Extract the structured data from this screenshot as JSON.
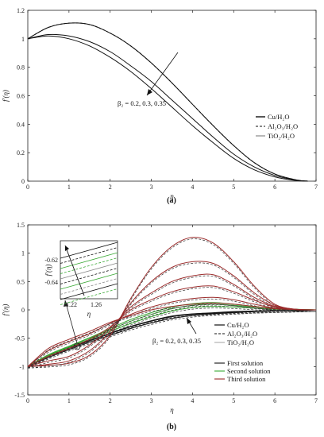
{
  "chart_data": [
    {
      "panel_label": "(a)",
      "type": "line",
      "xlabel": "η",
      "ylabel": "f'(η)",
      "xlim": [
        0,
        7
      ],
      "ylim": [
        0,
        1.2
      ],
      "xticks": [
        "0",
        "1",
        "2",
        "3",
        "4",
        "5",
        "6",
        "7"
      ],
      "yticks": [
        "0",
        "0.2",
        "0.4",
        "0.6",
        "0.8",
        "1",
        "1.2"
      ],
      "annotation": "β₂ = 0.2, 0.3, 0.35",
      "legend": [
        "Cu/H₂O",
        "Al₂O₃/H₂O",
        "TiO₂/H₂O"
      ],
      "x": [
        0,
        0.5,
        1,
        1.5,
        2,
        2.5,
        3,
        3.5,
        4,
        4.5,
        5,
        5.5,
        6,
        6.5,
        6.8
      ],
      "series": [
        {
          "values": [
            1.0,
            1.08,
            1.11,
            1.1,
            1.04,
            0.95,
            0.83,
            0.69,
            0.54,
            0.39,
            0.25,
            0.13,
            0.05,
            0.01,
            0.0
          ],
          "style": "solid"
        },
        {
          "values": [
            1.0,
            1.08,
            1.11,
            1.1,
            1.04,
            0.95,
            0.83,
            0.69,
            0.54,
            0.39,
            0.25,
            0.13,
            0.05,
            0.01,
            0.0
          ],
          "style": "dashed"
        },
        {
          "values": [
            1.0,
            1.02,
            1.0,
            0.95,
            0.87,
            0.77,
            0.65,
            0.52,
            0.39,
            0.27,
            0.16,
            0.08,
            0.03,
            0.005,
            0.0
          ],
          "style": "solid"
        },
        {
          "values": [
            1.0,
            1.03,
            1.02,
            0.98,
            0.91,
            0.81,
            0.7,
            0.57,
            0.44,
            0.31,
            0.19,
            0.1,
            0.04,
            0.008,
            0.0
          ],
          "style": "solid"
        }
      ]
    },
    {
      "panel_label": "(b)",
      "type": "line",
      "xlabel": "η",
      "ylabel": "f'(η)",
      "xlim": [
        0,
        7
      ],
      "ylim": [
        -1.5,
        1.5
      ],
      "xticks": [
        "0",
        "1",
        "2",
        "3",
        "4",
        "5",
        "6",
        "7"
      ],
      "yticks": [
        "-1.5",
        "-1",
        "-0.5",
        "0",
        "0.5",
        "1",
        "1.5"
      ],
      "annotation": "β₂ = 0.2, 0.3, 0.35",
      "legend": [
        "Cu/H₂O",
        "Al₂O₃/H₂O",
        "TiO₂/H₂O",
        "First solution",
        "Second solution",
        "Third solution"
      ],
      "inset": {
        "xlabel": "η",
        "ylabel": "f'(η)",
        "xticks": [
          "1.22",
          "1.26"
        ],
        "yticks": [
          "-0.62",
          "-0.64"
        ]
      },
      "x": [
        0,
        0.5,
        1,
        1.5,
        2,
        2.5,
        3,
        3.5,
        4,
        4.5,
        5,
        5.5,
        6,
        6.5,
        7
      ],
      "series": [
        {
          "group": "first",
          "color": "#111111",
          "values": [
            -1.0,
            -0.82,
            -0.68,
            -0.55,
            -0.42,
            -0.3,
            -0.2,
            -0.12,
            -0.08,
            -0.06,
            -0.04,
            -0.03,
            -0.02,
            -0.01,
            0.0
          ]
        },
        {
          "group": "first",
          "color": "#111111",
          "values": [
            -1.0,
            -0.84,
            -0.7,
            -0.57,
            -0.45,
            -0.33,
            -0.23,
            -0.15,
            -0.1,
            -0.07,
            -0.05,
            -0.03,
            -0.02,
            -0.01,
            0.0
          ]
        },
        {
          "group": "first",
          "color": "#111111",
          "values": [
            -1.0,
            -0.8,
            -0.66,
            -0.54,
            -0.41,
            -0.29,
            -0.19,
            -0.11,
            -0.07,
            -0.05,
            -0.03,
            -0.02,
            -0.01,
            -0.005,
            0.0
          ]
        },
        {
          "group": "second",
          "color": "#3aa935",
          "values": [
            -1.0,
            -0.8,
            -0.65,
            -0.5,
            -0.35,
            -0.2,
            -0.08,
            0.02,
            0.08,
            0.1,
            0.08,
            0.05,
            0.02,
            0.01,
            0.0
          ]
        },
        {
          "group": "second",
          "color": "#3aa935",
          "values": [
            -1.0,
            -0.81,
            -0.66,
            -0.52,
            -0.38,
            -0.24,
            -0.12,
            -0.02,
            0.04,
            0.06,
            0.05,
            0.03,
            0.01,
            0.005,
            0.0
          ]
        },
        {
          "group": "second",
          "color": "#3aa935",
          "values": [
            -1.0,
            -0.79,
            -0.64,
            -0.49,
            -0.33,
            -0.17,
            -0.05,
            0.05,
            0.11,
            0.13,
            0.1,
            0.06,
            0.03,
            0.01,
            0.0
          ]
        },
        {
          "group": "third",
          "color": "#9a2a2a",
          "values": [
            -1.0,
            -0.98,
            -0.94,
            -0.8,
            -0.45,
            0.2,
            0.75,
            1.12,
            1.28,
            1.18,
            0.85,
            0.42,
            0.1,
            0.01,
            0.0
          ]
        },
        {
          "group": "third",
          "color": "#9a2a2a",
          "values": [
            -1.0,
            -0.96,
            -0.9,
            -0.72,
            -0.38,
            0.12,
            0.5,
            0.75,
            0.85,
            0.82,
            0.6,
            0.3,
            0.08,
            0.01,
            0.0
          ]
        },
        {
          "group": "third",
          "color": "#9a2a2a",
          "values": [
            -1.0,
            -0.9,
            -0.82,
            -0.62,
            -0.32,
            0.05,
            0.3,
            0.5,
            0.6,
            0.62,
            0.45,
            0.22,
            0.06,
            0.01,
            0.0
          ]
        },
        {
          "group": "third",
          "color": "#9a2a2a",
          "values": [
            -1.0,
            -0.82,
            -0.68,
            -0.52,
            -0.3,
            0.0,
            0.18,
            0.32,
            0.4,
            0.42,
            0.32,
            0.17,
            0.05,
            0.01,
            0.0
          ]
        },
        {
          "group": "third",
          "color": "#9a2a2a",
          "values": [
            -1.0,
            -0.72,
            -0.56,
            -0.42,
            -0.24,
            -0.08,
            0.05,
            0.14,
            0.2,
            0.22,
            0.18,
            0.1,
            0.03,
            0.005,
            0.0
          ]
        },
        {
          "group": "third",
          "color": "#9a2a2a",
          "values": [
            -1.0,
            -0.68,
            -0.52,
            -0.38,
            -0.22,
            -0.1,
            0.0,
            0.06,
            0.1,
            0.12,
            0.1,
            0.06,
            0.02,
            0.005,
            0.0
          ]
        }
      ]
    }
  ]
}
